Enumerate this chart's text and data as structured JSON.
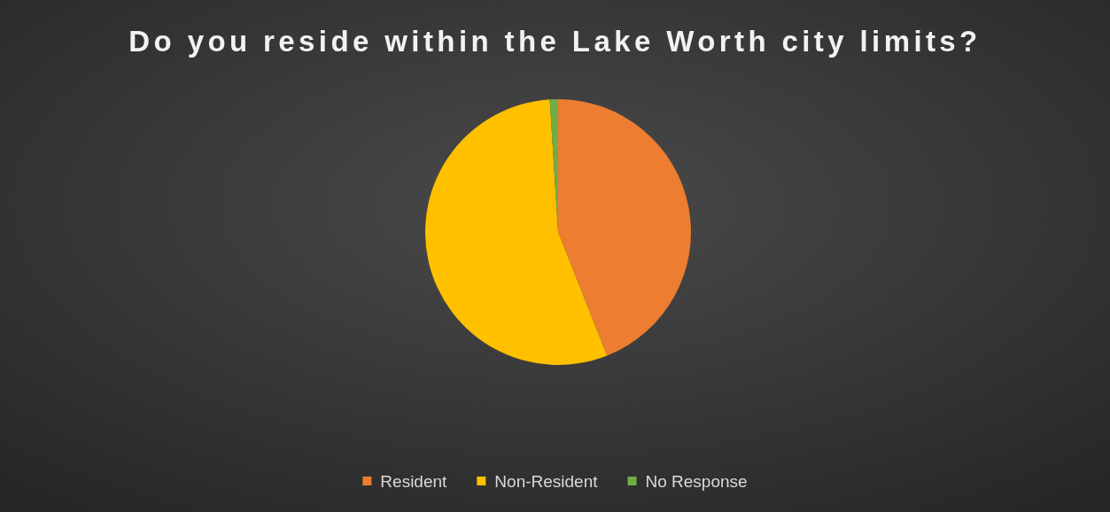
{
  "chart_data": {
    "type": "pie",
    "title": "Do you reside within the Lake Worth city limits?",
    "categories": [
      "Resident",
      "Non-Resident",
      "No Response"
    ],
    "values": [
      44,
      55,
      1
    ],
    "colors": [
      "#ed7d31",
      "#ffc000",
      "#70ad47"
    ],
    "legend": "bottom"
  }
}
